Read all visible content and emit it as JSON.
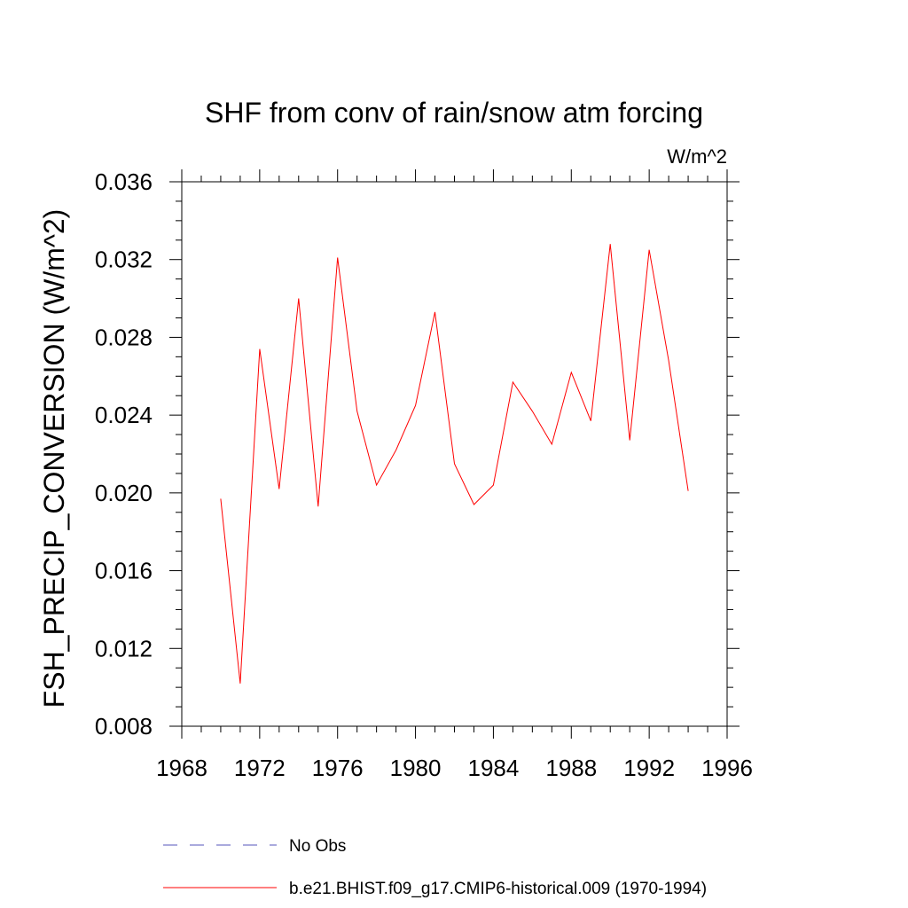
{
  "chart_data": {
    "type": "line",
    "title": "SHF from conv of rain/snow atm forcing",
    "units_label": "W/m^2",
    "ylabel": "FSH_PRECIP_CONVERSION  (W/m^2)",
    "xlabel": "",
    "xlim": [
      1968,
      1996
    ],
    "ylim": [
      0.008,
      0.036
    ],
    "xticks": [
      1968,
      1972,
      1976,
      1980,
      1984,
      1988,
      1992,
      1996
    ],
    "xtick_labels": [
      "1968",
      "1972",
      "1976",
      "1980",
      "1984",
      "1988",
      "1992",
      "1996"
    ],
    "yticks": [
      0.008,
      0.012,
      0.016,
      0.02,
      0.024,
      0.028,
      0.032,
      0.036
    ],
    "ytick_labels": [
      "0.008",
      "0.012",
      "0.016",
      "0.020",
      "0.024",
      "0.028",
      "0.032",
      "0.036"
    ],
    "grid": false,
    "legend_position": "bottom",
    "series": [
      {
        "name": "b.e21.BHIST.f09_g17.CMIP6-historical.009 (1970-1994)",
        "color": "#ff0000",
        "style": "solid",
        "x": [
          1970,
          1971,
          1972,
          1973,
          1974,
          1975,
          1976,
          1977,
          1978,
          1979,
          1980,
          1981,
          1982,
          1983,
          1984,
          1985,
          1986,
          1987,
          1988,
          1989,
          1990,
          1991,
          1992,
          1993,
          1994
        ],
        "y": [
          0.0197,
          0.0102,
          0.0274,
          0.0202,
          0.03,
          0.0193,
          0.0321,
          0.0242,
          0.0204,
          0.0222,
          0.0245,
          0.0293,
          0.0215,
          0.0194,
          0.0204,
          0.0257,
          0.0242,
          0.0225,
          0.0262,
          0.0237,
          0.0328,
          0.0227,
          0.0325,
          0.0268,
          0.0201
        ]
      }
    ],
    "legend": [
      {
        "label": "No Obs",
        "color": "#5555bb",
        "style": "dashed"
      },
      {
        "label": "b.e21.BHIST.f09_g17.CMIP6-historical.009 (1970-1994)",
        "color": "#ff0000",
        "style": "solid"
      }
    ]
  }
}
